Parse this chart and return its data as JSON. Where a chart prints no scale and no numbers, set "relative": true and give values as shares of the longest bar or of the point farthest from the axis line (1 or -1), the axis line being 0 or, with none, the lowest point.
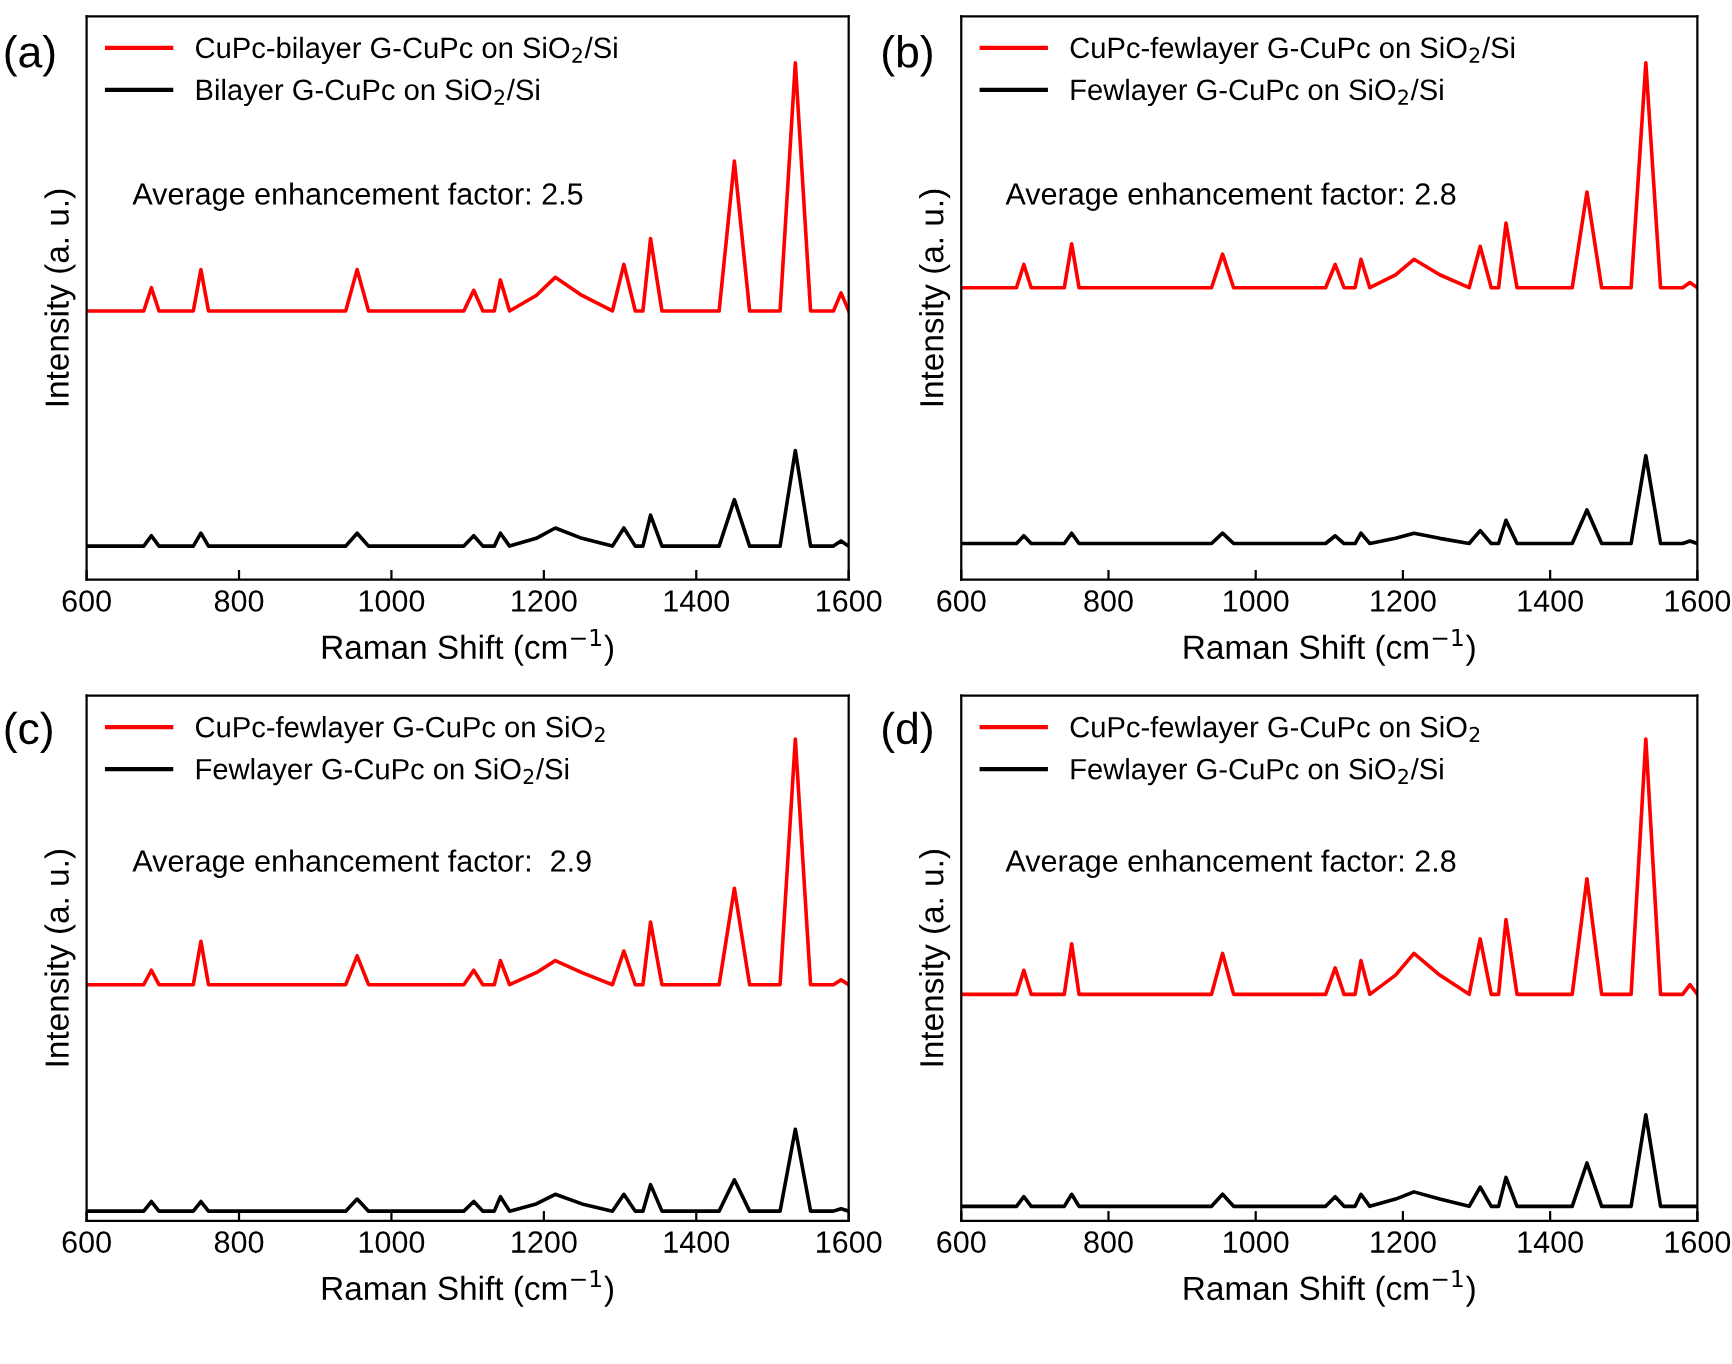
{
  "chart_data": [
    {
      "type": "line",
      "title": "(a)",
      "xlabel": "Raman Shift (cm$^{−1}$)",
      "ylabel": "Intensity (a. u.)",
      "relative": true,
      "xlim": [
        600,
        1600
      ],
      "xticks": [
        600,
        800,
        1000,
        1200,
        1400,
        1600
      ],
      "tick_labels": "x",
      "legend": "top left",
      "marker": "none",
      "line_style": "solid",
      "annotations": [
        "Average enhancement factor: 2.5"
      ],
      "x": [
        600,
        640,
        675,
        685,
        695,
        740,
        750,
        760,
        800,
        850,
        900,
        940,
        955,
        970,
        1000,
        1050,
        1095,
        1108,
        1120,
        1135,
        1143,
        1155,
        1190,
        1215,
        1250,
        1290,
        1305,
        1320,
        1330,
        1340,
        1355,
        1380,
        1430,
        1450,
        1470,
        1510,
        1530,
        1550,
        1580,
        1590,
        1600
      ],
      "series": [
        {
          "name": "CuPc-bilayer G-CuPc on SiO$_{2}$/Si",
          "color": "#ff0000",
          "values": [
            0.52,
            0.52,
            0.52,
            0.565,
            0.52,
            0.52,
            0.6,
            0.52,
            0.52,
            0.52,
            0.52,
            0.52,
            0.6,
            0.52,
            0.52,
            0.52,
            0.52,
            0.56,
            0.52,
            0.52,
            0.58,
            0.52,
            0.55,
            0.585,
            0.55,
            0.52,
            0.61,
            0.52,
            0.52,
            0.66,
            0.52,
            0.52,
            0.52,
            0.81,
            0.52,
            0.52,
            1.0,
            0.52,
            0.52,
            0.555,
            0.52
          ]
        },
        {
          "name": "Bilayer G-CuPc on SiO$_{2}$/Si",
          "color": "#000000",
          "values": [
            0.065,
            0.065,
            0.065,
            0.085,
            0.065,
            0.065,
            0.09,
            0.065,
            0.065,
            0.065,
            0.065,
            0.065,
            0.09,
            0.065,
            0.065,
            0.065,
            0.065,
            0.085,
            0.065,
            0.065,
            0.09,
            0.065,
            0.08,
            0.1,
            0.08,
            0.065,
            0.1,
            0.065,
            0.065,
            0.125,
            0.065,
            0.065,
            0.065,
            0.155,
            0.065,
            0.065,
            0.25,
            0.065,
            0.065,
            0.075,
            0.065
          ]
        }
      ]
    },
    {
      "type": "line",
      "title": "(b)",
      "xlabel": "Raman Shift (cm$^{−1}$)",
      "ylabel": "Intensity (a. u.)",
      "relative": true,
      "xlim": [
        600,
        1600
      ],
      "xticks": [
        600,
        800,
        1000,
        1200,
        1400,
        1600
      ],
      "tick_labels": "x",
      "legend": "top left",
      "marker": "none",
      "line_style": "solid",
      "annotations": [
        "Average enhancement factor: 2.8"
      ],
      "x": [
        600,
        640,
        675,
        685,
        695,
        740,
        750,
        760,
        800,
        850,
        900,
        940,
        955,
        970,
        1000,
        1050,
        1095,
        1108,
        1120,
        1135,
        1143,
        1155,
        1190,
        1215,
        1250,
        1290,
        1305,
        1320,
        1330,
        1340,
        1355,
        1380,
        1430,
        1450,
        1470,
        1510,
        1530,
        1550,
        1580,
        1590,
        1600
      ],
      "series": [
        {
          "name": "CuPc-fewlayer G-CuPc on SiO$_{2}$/Si",
          "color": "#ff0000",
          "values": [
            0.565,
            0.565,
            0.565,
            0.61,
            0.565,
            0.565,
            0.65,
            0.565,
            0.565,
            0.565,
            0.565,
            0.565,
            0.63,
            0.565,
            0.565,
            0.565,
            0.565,
            0.61,
            0.565,
            0.565,
            0.62,
            0.565,
            0.59,
            0.62,
            0.59,
            0.565,
            0.645,
            0.565,
            0.565,
            0.69,
            0.565,
            0.565,
            0.565,
            0.75,
            0.565,
            0.565,
            1.0,
            0.565,
            0.565,
            0.575,
            0.565
          ]
        },
        {
          "name": "Fewlayer G-CuPc on SiO$_{2}$/Si",
          "color": "#000000",
          "values": [
            0.07,
            0.07,
            0.07,
            0.085,
            0.07,
            0.07,
            0.09,
            0.07,
            0.07,
            0.07,
            0.07,
            0.07,
            0.09,
            0.07,
            0.07,
            0.07,
            0.07,
            0.085,
            0.07,
            0.07,
            0.09,
            0.07,
            0.08,
            0.09,
            0.08,
            0.07,
            0.095,
            0.07,
            0.07,
            0.115,
            0.07,
            0.07,
            0.07,
            0.135,
            0.07,
            0.07,
            0.24,
            0.07,
            0.07,
            0.075,
            0.07
          ]
        }
      ]
    },
    {
      "type": "line",
      "title": "(c)",
      "xlabel": "Raman Shift (cm$^{−1}$)",
      "ylabel": "Intensity (a. u.)",
      "relative": true,
      "xlim": [
        600,
        1600
      ],
      "xticks": [
        600,
        800,
        1000,
        1200,
        1400,
        1600
      ],
      "tick_labels": "x",
      "legend": "top left",
      "marker": "none",
      "line_style": "solid",
      "annotations": [
        "Average enhancement factor:  2.9"
      ],
      "x": [
        600,
        640,
        675,
        685,
        695,
        740,
        750,
        760,
        800,
        850,
        900,
        940,
        955,
        970,
        1000,
        1050,
        1095,
        1108,
        1120,
        1135,
        1143,
        1155,
        1190,
        1215,
        1250,
        1290,
        1305,
        1320,
        1330,
        1340,
        1355,
        1380,
        1430,
        1450,
        1470,
        1510,
        1530,
        1550,
        1580,
        1590,
        1600
      ],
      "series": [
        {
          "name": "CuPc-fewlayer G-CuPc on SiO$_{2}$",
          "color": "#ff0000",
          "values": [
            0.49,
            0.49,
            0.49,
            0.52,
            0.49,
            0.49,
            0.58,
            0.49,
            0.49,
            0.49,
            0.49,
            0.49,
            0.55,
            0.49,
            0.49,
            0.49,
            0.49,
            0.52,
            0.49,
            0.49,
            0.54,
            0.49,
            0.515,
            0.54,
            0.515,
            0.49,
            0.56,
            0.49,
            0.49,
            0.62,
            0.49,
            0.49,
            0.49,
            0.69,
            0.49,
            0.49,
            1.0,
            0.49,
            0.49,
            0.5,
            0.49
          ]
        },
        {
          "name": "Fewlayer G-CuPc on SiO$_{2}$/Si",
          "color": "#000000",
          "values": [
            0.02,
            0.02,
            0.02,
            0.04,
            0.02,
            0.02,
            0.04,
            0.02,
            0.02,
            0.02,
            0.02,
            0.02,
            0.045,
            0.02,
            0.02,
            0.02,
            0.02,
            0.04,
            0.02,
            0.02,
            0.05,
            0.02,
            0.035,
            0.055,
            0.035,
            0.02,
            0.055,
            0.02,
            0.02,
            0.075,
            0.02,
            0.02,
            0.02,
            0.085,
            0.02,
            0.02,
            0.19,
            0.02,
            0.02,
            0.025,
            0.02
          ]
        }
      ]
    },
    {
      "type": "line",
      "title": "(d)",
      "xlabel": "Raman Shift (cm$^{−1}$)",
      "ylabel": "Intensity (a. u.)",
      "relative": true,
      "xlim": [
        600,
        1600
      ],
      "xticks": [
        600,
        800,
        1000,
        1200,
        1400,
        1600
      ],
      "tick_labels": "x",
      "legend": "top left",
      "marker": "none",
      "line_style": "solid",
      "annotations": [
        "Average enhancement factor: 2.8"
      ],
      "x": [
        600,
        640,
        675,
        685,
        695,
        740,
        750,
        760,
        800,
        850,
        900,
        940,
        955,
        970,
        1000,
        1050,
        1095,
        1108,
        1120,
        1135,
        1143,
        1155,
        1190,
        1215,
        1250,
        1290,
        1305,
        1320,
        1330,
        1340,
        1355,
        1380,
        1430,
        1450,
        1470,
        1510,
        1530,
        1550,
        1580,
        1590,
        1600
      ],
      "series": [
        {
          "name": "CuPc-fewlayer G-CuPc on SiO$_{2}$",
          "color": "#ff0000",
          "values": [
            0.47,
            0.47,
            0.47,
            0.52,
            0.47,
            0.47,
            0.575,
            0.47,
            0.47,
            0.47,
            0.47,
            0.47,
            0.555,
            0.47,
            0.47,
            0.47,
            0.47,
            0.525,
            0.47,
            0.47,
            0.54,
            0.47,
            0.51,
            0.555,
            0.51,
            0.47,
            0.585,
            0.47,
            0.47,
            0.625,
            0.47,
            0.47,
            0.47,
            0.71,
            0.47,
            0.47,
            1.0,
            0.47,
            0.47,
            0.49,
            0.47
          ]
        },
        {
          "name": "Fewlayer G-CuPc on SiO$_{2}$/Si",
          "color": "#000000",
          "values": [
            0.03,
            0.03,
            0.03,
            0.05,
            0.03,
            0.03,
            0.055,
            0.03,
            0.03,
            0.03,
            0.03,
            0.03,
            0.055,
            0.03,
            0.03,
            0.03,
            0.03,
            0.05,
            0.03,
            0.03,
            0.055,
            0.03,
            0.045,
            0.06,
            0.045,
            0.03,
            0.07,
            0.03,
            0.03,
            0.09,
            0.03,
            0.03,
            0.03,
            0.12,
            0.03,
            0.03,
            0.22,
            0.03,
            0.03,
            0.03,
            0.03
          ]
        }
      ]
    }
  ]
}
